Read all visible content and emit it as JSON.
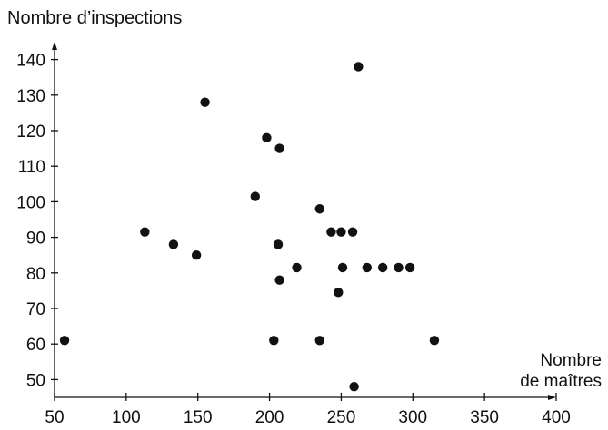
{
  "chart_data": {
    "type": "scatter",
    "ylabel": "Nombre d’inspections",
    "xlabel_lines": [
      "Nombre",
      "de maîtres"
    ],
    "xlim": [
      50,
      400
    ],
    "ylim": [
      45,
      145
    ],
    "x_ticks": [
      "50",
      "100",
      "150",
      "200",
      "250",
      "300",
      "350",
      "400"
    ],
    "y_ticks": [
      "50",
      "60",
      "70",
      "80",
      "90",
      "100",
      "110",
      "120",
      "130",
      "140"
    ],
    "grid": false,
    "points": [
      {
        "x": 57,
        "y": 61
      },
      {
        "x": 113,
        "y": 91.5
      },
      {
        "x": 133,
        "y": 88
      },
      {
        "x": 149,
        "y": 85
      },
      {
        "x": 155,
        "y": 128
      },
      {
        "x": 190,
        "y": 101.5
      },
      {
        "x": 198,
        "y": 118
      },
      {
        "x": 203,
        "y": 61
      },
      {
        "x": 206,
        "y": 88
      },
      {
        "x": 207,
        "y": 115
      },
      {
        "x": 207,
        "y": 78
      },
      {
        "x": 219,
        "y": 81.5
      },
      {
        "x": 235,
        "y": 98
      },
      {
        "x": 235,
        "y": 61
      },
      {
        "x": 243,
        "y": 91.5
      },
      {
        "x": 248,
        "y": 74.5
      },
      {
        "x": 250,
        "y": 91.5
      },
      {
        "x": 251,
        "y": 81.5
      },
      {
        "x": 258,
        "y": 91.5
      },
      {
        "x": 259,
        "y": 48
      },
      {
        "x": 262,
        "y": 138
      },
      {
        "x": 268,
        "y": 81.5
      },
      {
        "x": 279,
        "y": 81.5
      },
      {
        "x": 290,
        "y": 81.5
      },
      {
        "x": 298,
        "y": 81.5
      },
      {
        "x": 315,
        "y": 61
      }
    ]
  }
}
